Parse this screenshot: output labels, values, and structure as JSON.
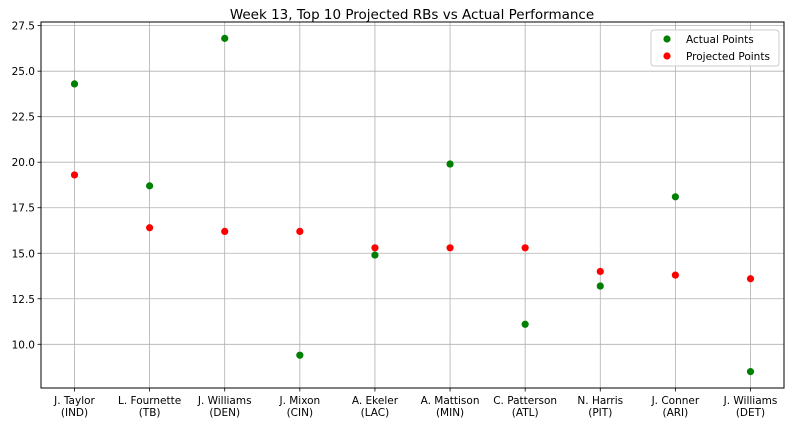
{
  "chart_data": {
    "type": "scatter",
    "title": "Week 13, Top 10 Projected RBs vs Actual Performance",
    "xlabel": "",
    "ylabel": "",
    "categories": [
      [
        "J. Taylor",
        "(IND)"
      ],
      [
        "L. Fournette",
        "(TB)"
      ],
      [
        "J. Williams",
        "(DEN)"
      ],
      [
        "J. Mixon",
        "(CIN)"
      ],
      [
        "A. Ekeler",
        "(LAC)"
      ],
      [
        "A. Mattison",
        "(MIN)"
      ],
      [
        "C. Patterson",
        "(ATL)"
      ],
      [
        "N. Harris",
        "(PIT)"
      ],
      [
        "J. Conner",
        "(ARI)"
      ],
      [
        "J. Williams",
        "(DET)"
      ]
    ],
    "series": [
      {
        "name": "Actual Points",
        "color": "#008000",
        "values": [
          24.3,
          18.7,
          26.8,
          9.4,
          14.9,
          19.9,
          11.1,
          13.2,
          18.1,
          8.5
        ]
      },
      {
        "name": "Projected Points",
        "color": "#ff0000",
        "values": [
          19.3,
          16.4,
          16.2,
          16.2,
          15.3,
          15.3,
          15.3,
          14.0,
          13.8,
          13.6
        ]
      }
    ],
    "yticks": [
      10.0,
      12.5,
      15.0,
      17.5,
      20.0,
      22.5,
      25.0,
      27.5
    ],
    "ylim": [
      7.6,
      27.7
    ],
    "grid": true,
    "legend": "top-right"
  }
}
